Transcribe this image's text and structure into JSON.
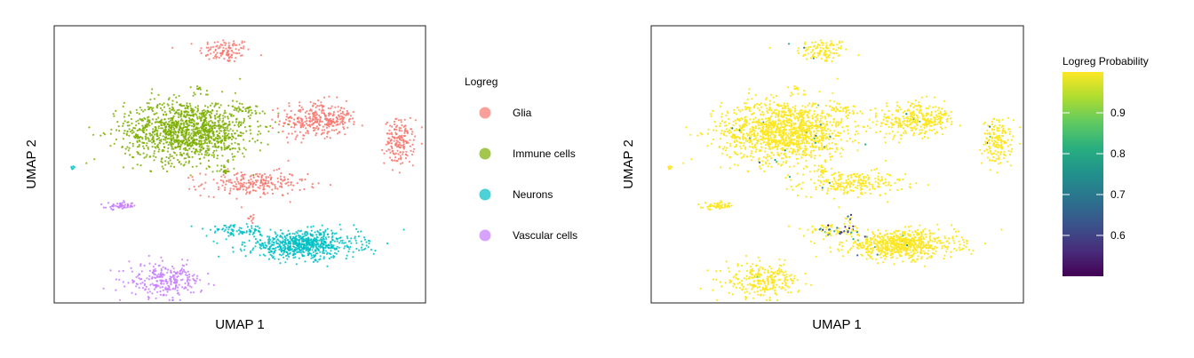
{
  "chart_data": [
    {
      "type": "scatter",
      "xlabel": "UMAP 1",
      "ylabel": "UMAP 2",
      "legend_title": "Logreg",
      "legend_position": "right",
      "grid": false,
      "axis_ticks": false,
      "categories": [
        "Glia",
        "Immune cells",
        "Neurons",
        "Vascular cells"
      ],
      "colors": {
        "Glia": "#F8766D",
        "Immune cells": "#7CAE00",
        "Neurons": "#00BFC4",
        "Vascular cells": "#C77CFF"
      },
      "xlim": [
        0,
        100
      ],
      "ylim": [
        0,
        100
      ],
      "clusters": [
        {
          "category": "Glia",
          "cx": 46,
          "cy": 91,
          "sx": 3.5,
          "sy": 2.2,
          "n": 110
        },
        {
          "category": "Glia",
          "cx": 70,
          "cy": 66,
          "sx": 4.5,
          "sy": 3.5,
          "n": 260
        },
        {
          "category": "Glia",
          "cx": 76,
          "cy": 66,
          "sx": 2.5,
          "sy": 1.8,
          "n": 60
        },
        {
          "category": "Glia",
          "cx": 93,
          "cy": 58,
          "sx": 2.0,
          "sy": 4.0,
          "n": 170
        },
        {
          "category": "Glia",
          "cx": 54,
          "cy": 43,
          "sx": 7.0,
          "sy": 2.2,
          "n": 230
        },
        {
          "category": "Glia",
          "cx": 53,
          "cy": 31,
          "sx": 0.8,
          "sy": 1.2,
          "n": 10
        },
        {
          "category": "Immune cells",
          "cx": 36,
          "cy": 62,
          "sx": 8.5,
          "sy": 5.5,
          "n": 1300
        },
        {
          "category": "Immune cells",
          "cx": 52,
          "cy": 70,
          "sx": 2.2,
          "sy": 0.8,
          "n": 30
        },
        {
          "category": "Immune cells",
          "cx": 39,
          "cy": 77,
          "sx": 0.4,
          "sy": 0.6,
          "n": 8
        },
        {
          "category": "Immune cells",
          "cx": 46,
          "cy": 48,
          "sx": 0.6,
          "sy": 1.0,
          "n": 15
        },
        {
          "category": "Neurons",
          "cx": 67,
          "cy": 21,
          "sx": 7.5,
          "sy": 2.5,
          "n": 700
        },
        {
          "category": "Neurons",
          "cx": 49,
          "cy": 26,
          "sx": 4.0,
          "sy": 1.0,
          "n": 80
        },
        {
          "category": "Neurons",
          "cx": 5,
          "cy": 49,
          "sx": 0.4,
          "sy": 0.4,
          "n": 6
        },
        {
          "category": "Vascular cells",
          "cx": 18,
          "cy": 35,
          "sx": 2.0,
          "sy": 0.6,
          "n": 55
        },
        {
          "category": "Vascular cells",
          "cx": 30,
          "cy": 8,
          "sx": 5.0,
          "sy": 3.0,
          "n": 260
        }
      ]
    },
    {
      "type": "scatter",
      "xlabel": "UMAP 1",
      "ylabel": "UMAP 2",
      "legend_title": "Logreg Probability",
      "legend_position": "right",
      "grid": false,
      "color_scale": "viridis",
      "color_range": [
        0.5,
        1.0
      ],
      "colorbar_ticks": [
        0.6,
        0.7,
        0.8,
        0.9
      ],
      "colorbar_tick_labels": [
        "0.6",
        "0.7",
        "0.8",
        "0.9"
      ],
      "xlim": [
        0,
        100
      ],
      "ylim": [
        0,
        100
      ],
      "value_note": "most cells near 1.0; low-probability cells concentrated near the junction of glia and neuron clusters"
    }
  ]
}
